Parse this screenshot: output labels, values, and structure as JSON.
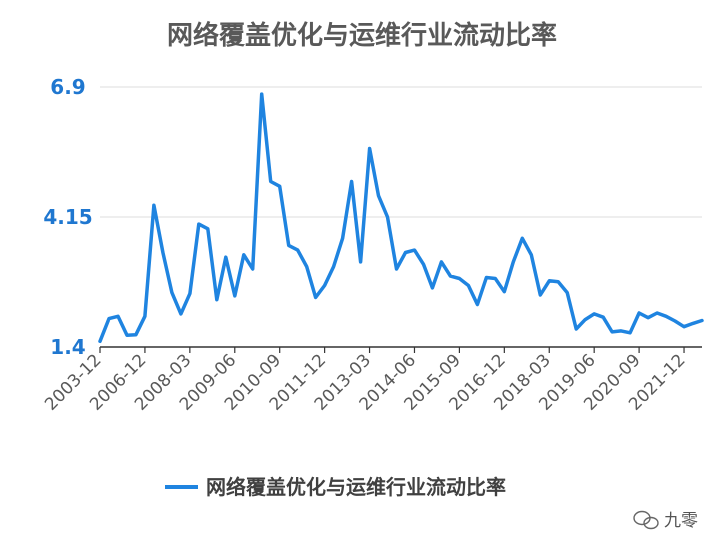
{
  "chart_data": {
    "type": "line",
    "title": "网络覆盖优化与运维行业流动比率",
    "xlabel": "",
    "ylabel": "",
    "ylim": [
      1.4,
      6.9
    ],
    "yticks": [
      "1.4",
      "4.15",
      "6.9"
    ],
    "xtick_labels": [
      "2003-12",
      "2006-12",
      "2008-03",
      "2009-06",
      "2010-09",
      "2011-12",
      "2013-03",
      "2014-06",
      "2015-09",
      "2016-12",
      "2018-03",
      "2019-06",
      "2020-09",
      "2021-12"
    ],
    "grid": "horizontal",
    "legend": "bottom",
    "color": "#1f84e0",
    "series": [
      {
        "name": "网络覆盖优化与运维行业流动比率",
        "values": [
          1.52,
          2.0,
          2.05,
          1.65,
          1.66,
          2.05,
          4.4,
          3.4,
          2.55,
          2.1,
          2.53,
          4.0,
          3.9,
          2.4,
          3.3,
          2.48,
          3.35,
          3.05,
          6.75,
          4.9,
          4.8,
          3.55,
          3.45,
          3.1,
          2.45,
          2.7,
          3.1,
          3.7,
          4.9,
          3.2,
          5.6,
          4.6,
          4.15,
          3.05,
          3.4,
          3.45,
          3.15,
          2.65,
          3.2,
          2.9,
          2.85,
          2.7,
          2.3,
          2.87,
          2.85,
          2.57,
          3.2,
          3.7,
          3.35,
          2.5,
          2.8,
          2.78,
          2.55,
          1.78,
          1.98,
          2.1,
          2.03,
          1.72,
          1.74,
          1.7,
          2.12,
          2.02,
          2.12,
          2.05,
          1.95,
          1.83,
          1.9,
          1.96
        ]
      }
    ]
  },
  "watermark": {
    "text": "九零"
  }
}
